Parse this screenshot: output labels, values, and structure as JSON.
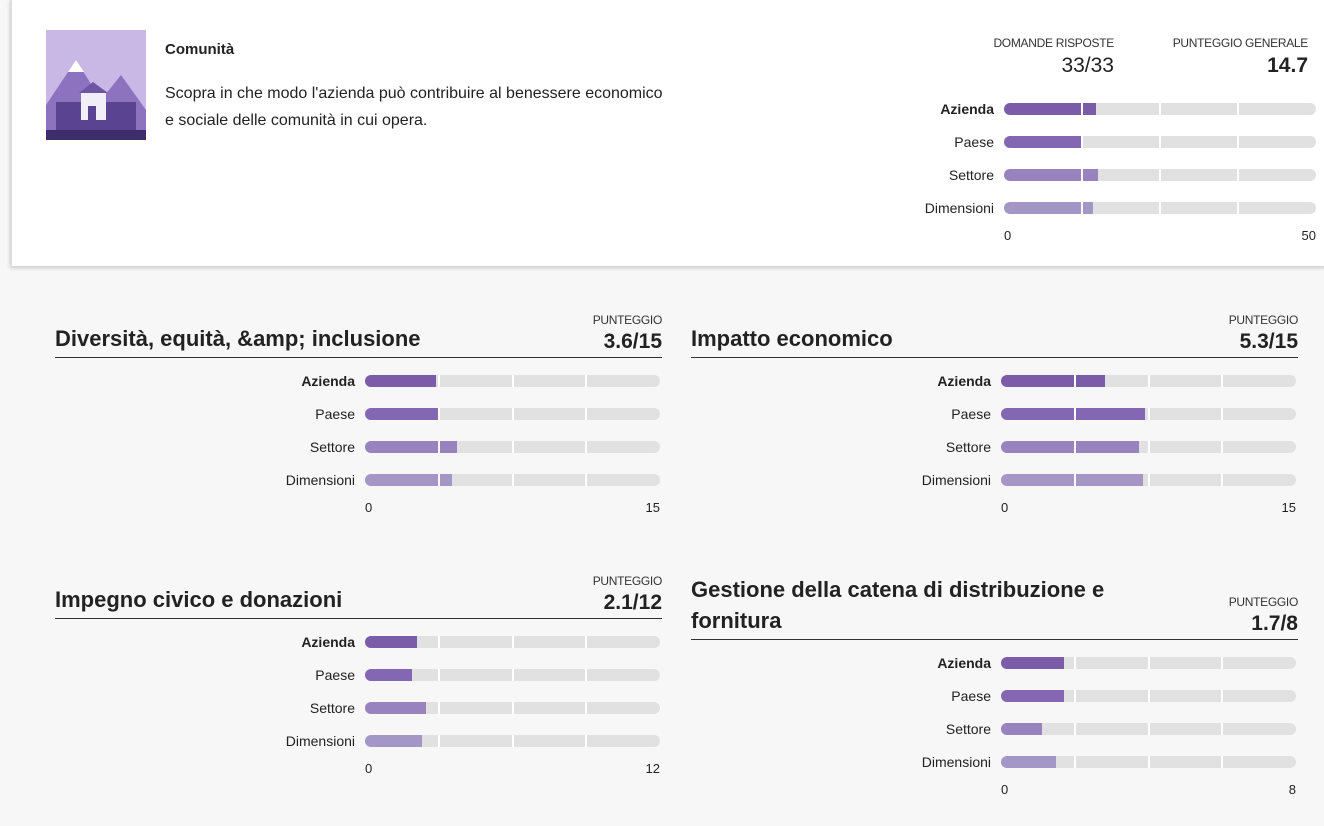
{
  "header": {
    "title": "Comunità",
    "description": "Scopra in che modo l'azienda può contribuire al benessere economico e sociale delle comunità in cui opera.",
    "answered_label": "DOMANDE RISPOSTE",
    "answered": "33/33",
    "score_label": "PUNTEGGIO GENERALE",
    "score": 14.7,
    "chart": {
      "type": "bar",
      "categories": [
        "Azienda",
        "Paese",
        "Settore",
        "Dimensioni"
      ],
      "values": [
        14.7,
        12.5,
        15,
        14.3
      ],
      "colors": [
        "#7a5ca8",
        "#8467b2",
        "#9883bf",
        "#a596c8"
      ],
      "xlim": [
        0,
        50
      ],
      "xticks": [
        0,
        50
      ]
    }
  },
  "sections": [
    {
      "title": "Diversità, equità, &amp; inclusione",
      "score_label": "PUNTEGGIO",
      "score": "3.6/15",
      "chart": {
        "type": "bar",
        "categories": [
          "Azienda",
          "Paese",
          "Settore",
          "Dimensioni"
        ],
        "values": [
          3.6,
          3.7,
          4.7,
          4.4
        ],
        "colors": [
          "#7a5ca8",
          "#8467b2",
          "#9883bf",
          "#a596c8"
        ],
        "xlim": [
          0,
          15
        ],
        "xticks": [
          0,
          15
        ]
      }
    },
    {
      "title": "Impatto economico",
      "score_label": "PUNTEGGIO",
      "score": "5.3/15",
      "chart": {
        "type": "bar",
        "categories": [
          "Azienda",
          "Paese",
          "Settore",
          "Dimensioni"
        ],
        "values": [
          5.3,
          7.3,
          7.0,
          7.2
        ],
        "colors": [
          "#7a5ca8",
          "#8467b2",
          "#9883bf",
          "#a596c8"
        ],
        "xlim": [
          0,
          15
        ],
        "xticks": [
          0,
          15
        ]
      }
    },
    {
      "title": "Impegno civico e donazioni",
      "score_label": "PUNTEGGIO",
      "score": "2.1/12",
      "chart": {
        "type": "bar",
        "categories": [
          "Azienda",
          "Paese",
          "Settore",
          "Dimensioni"
        ],
        "values": [
          2.1,
          1.9,
          2.5,
          2.3
        ],
        "colors": [
          "#7a5ca8",
          "#8467b2",
          "#9883bf",
          "#a596c8"
        ],
        "xlim": [
          0,
          12
        ],
        "xticks": [
          0,
          12
        ]
      }
    },
    {
      "title": "Gestione della catena di distribuzione e fornitura",
      "score_label": "PUNTEGGIO",
      "score": "1.7/8",
      "chart": {
        "type": "bar",
        "categories": [
          "Azienda",
          "Paese",
          "Settore",
          "Dimensioni"
        ],
        "values": [
          1.7,
          1.7,
          1.1,
          1.5
        ],
        "colors": [
          "#7a5ca8",
          "#8467b2",
          "#9883bf",
          "#a596c8"
        ],
        "xlim": [
          0,
          8
        ],
        "xticks": [
          0,
          8
        ]
      }
    }
  ]
}
